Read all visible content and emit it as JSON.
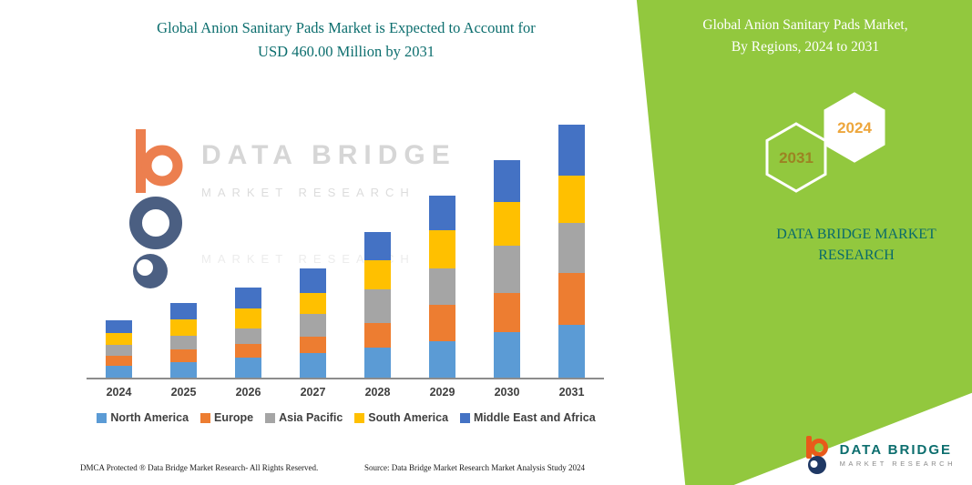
{
  "page": {
    "background": "#ffffff",
    "accent_green": "#92C83E",
    "brand_teal": "#0C6E6E"
  },
  "left_panel": {
    "title_line1": "Global Anion Sanitary Pads Market is Expected to Account for",
    "title_line2": "USD 460.00 Million by 2031",
    "watermark": {
      "title": "DATA BRIDGE",
      "subtitle": "MARKET RESEARCH",
      "subtitle_faint": "MARKET RESEARCH"
    },
    "footer_left": "DMCA Protected ® Data Bridge Market Research-  All Rights Reserved.",
    "footer_source": "Source: Data Bridge Market Research  Market Analysis Study 2024"
  },
  "right_panel": {
    "title_line1": "Global Anion Sanitary Pads Market,",
    "title_line2": "By Regions, 2024 to 2031",
    "hexagons": {
      "left_year": "2031",
      "right_year": "2024"
    },
    "hexagon_year_colors": {
      "left": "#9c8322",
      "right": "#EDA63C"
    },
    "brand_line1": "DATA BRIDGE MARKET",
    "brand_line2": "RESEARCH"
  },
  "footer_logo": {
    "title": "DATA BRIDGE",
    "subtitle": "MARKET RESEARCH"
  },
  "chart_data": {
    "type": "bar",
    "stacked": true,
    "title": "Global Anion Sanitary Pads Market, By Regions, 2024 to 2031",
    "unit": "USD Million",
    "categories": [
      "2024",
      "2025",
      "2026",
      "2027",
      "2028",
      "2029",
      "2030",
      "2031"
    ],
    "series": [
      {
        "name": "North America",
        "color": "#5B9BD5",
        "values": [
          22,
          28,
          36,
          45,
          55,
          66,
          83,
          96
        ]
      },
      {
        "name": "Europe",
        "color": "#ED7D31",
        "values": [
          18,
          23,
          26,
          30,
          45,
          66,
          71,
          94
        ]
      },
      {
        "name": "Asia Pacific",
        "color": "#A5A5A5",
        "values": [
          20,
          25,
          28,
          41,
          61,
          66,
          86,
          91
        ]
      },
      {
        "name": "South America",
        "color": "#FFC000",
        "values": [
          21,
          30,
          36,
          38,
          53,
          70,
          79,
          86
        ]
      },
      {
        "name": "Middle East and Africa",
        "color": "#4472C4",
        "values": [
          23,
          30,
          38,
          45,
          51,
          63,
          76,
          93
        ]
      }
    ],
    "totals": [
      104,
      136,
      164,
      199,
      265,
      331,
      395,
      460
    ],
    "ylim": [
      0,
      460
    ],
    "grid": false,
    "legend_position": "bottom",
    "axis_labels_visible": false
  }
}
